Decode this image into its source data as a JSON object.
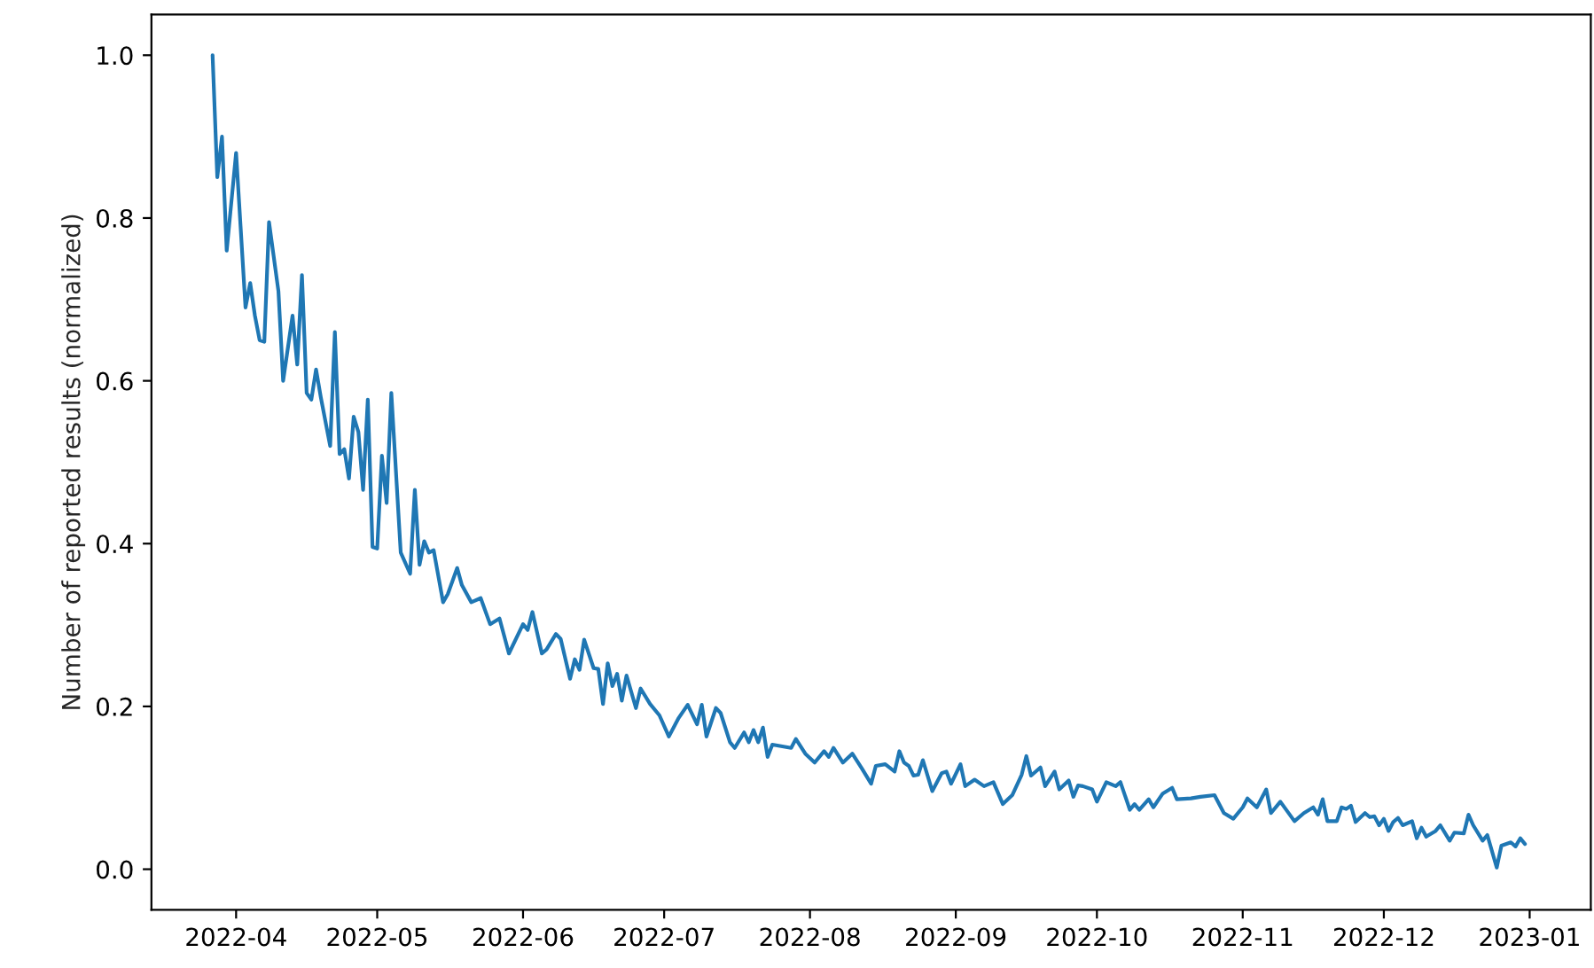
{
  "chart_data": {
    "type": "line",
    "ylabel": "Number of reported results (normalized)",
    "x": [
      "2022-03-27",
      "2022-03-28",
      "2022-03-29",
      "2022-03-30",
      "2022-04-01",
      "2022-04-03",
      "2022-04-04",
      "2022-04-05",
      "2022-04-06",
      "2022-04-07",
      "2022-04-08",
      "2022-04-10",
      "2022-04-11",
      "2022-04-13",
      "2022-04-14",
      "2022-04-15",
      "2022-04-16",
      "2022-04-17",
      "2022-04-18",
      "2022-04-19",
      "2022-04-21",
      "2022-04-22",
      "2022-04-23",
      "2022-04-24",
      "2022-04-25",
      "2022-04-26",
      "2022-04-27",
      "2022-04-28",
      "2022-04-29",
      "2022-04-30",
      "2022-05-01",
      "2022-05-02",
      "2022-05-03",
      "2022-05-04",
      "2022-05-06",
      "2022-05-08",
      "2022-05-09",
      "2022-05-10",
      "2022-05-11",
      "2022-05-12",
      "2022-05-13",
      "2022-05-15",
      "2022-05-16",
      "2022-05-18",
      "2022-05-19",
      "2022-05-21",
      "2022-05-23",
      "2022-05-25",
      "2022-05-27",
      "2022-05-29",
      "2022-06-01",
      "2022-06-02",
      "2022-06-03",
      "2022-06-05",
      "2022-06-06",
      "2022-06-08",
      "2022-06-09",
      "2022-06-11",
      "2022-06-12",
      "2022-06-13",
      "2022-06-14",
      "2022-06-16",
      "2022-06-17",
      "2022-06-18",
      "2022-06-19",
      "2022-06-20",
      "2022-06-21",
      "2022-06-22",
      "2022-06-23",
      "2022-06-25",
      "2022-06-26",
      "2022-06-28",
      "2022-06-30",
      "2022-07-02",
      "2022-07-04",
      "2022-07-06",
      "2022-07-08",
      "2022-07-09",
      "2022-07-10",
      "2022-07-12",
      "2022-07-13",
      "2022-07-15",
      "2022-07-16",
      "2022-07-18",
      "2022-07-19",
      "2022-07-20",
      "2022-07-21",
      "2022-07-22",
      "2022-07-23",
      "2022-07-24",
      "2022-07-28",
      "2022-07-29",
      "2022-07-31",
      "2022-08-02",
      "2022-08-04",
      "2022-08-05",
      "2022-08-06",
      "2022-08-08",
      "2022-08-10",
      "2022-08-12",
      "2022-08-14",
      "2022-08-15",
      "2022-08-17",
      "2022-08-19",
      "2022-08-20",
      "2022-08-21",
      "2022-08-22",
      "2022-08-23",
      "2022-08-24",
      "2022-08-25",
      "2022-08-27",
      "2022-08-29",
      "2022-08-30",
      "2022-08-31",
      "2022-09-02",
      "2022-09-03",
      "2022-09-05",
      "2022-09-07",
      "2022-09-09",
      "2022-09-11",
      "2022-09-13",
      "2022-09-15",
      "2022-09-16",
      "2022-09-17",
      "2022-09-19",
      "2022-09-20",
      "2022-09-22",
      "2022-09-23",
      "2022-09-25",
      "2022-09-26",
      "2022-09-27",
      "2022-09-28",
      "2022-09-30",
      "2022-10-01",
      "2022-10-03",
      "2022-10-05",
      "2022-10-06",
      "2022-10-08",
      "2022-10-09",
      "2022-10-10",
      "2022-10-12",
      "2022-10-13",
      "2022-10-15",
      "2022-10-17",
      "2022-10-18",
      "2022-10-21",
      "2022-10-23",
      "2022-10-26",
      "2022-10-28",
      "2022-10-30",
      "2022-11-01",
      "2022-11-02",
      "2022-11-04",
      "2022-11-06",
      "2022-11-07",
      "2022-11-09",
      "2022-11-12",
      "2022-11-14",
      "2022-11-16",
      "2022-11-17",
      "2022-11-18",
      "2022-11-19",
      "2022-11-21",
      "2022-11-22",
      "2022-11-23",
      "2022-11-24",
      "2022-11-25",
      "2022-11-27",
      "2022-11-28",
      "2022-11-29",
      "2022-11-30",
      "2022-12-01",
      "2022-12-02",
      "2022-12-03",
      "2022-12-04",
      "2022-12-05",
      "2022-12-07",
      "2022-12-08",
      "2022-12-09",
      "2022-12-10",
      "2022-12-12",
      "2022-12-13",
      "2022-12-15",
      "2022-12-16",
      "2022-12-18",
      "2022-12-19",
      "2022-12-20",
      "2022-12-22",
      "2022-12-23",
      "2022-12-25",
      "2022-12-26",
      "2022-12-28",
      "2022-12-29",
      "2022-12-30",
      "2022-12-31"
    ],
    "series": [
      {
        "color": "#1f77b4",
        "values": [
          1.0,
          0.85,
          0.9,
          0.76,
          0.88,
          0.69,
          0.72,
          0.68,
          0.65,
          0.648,
          0.795,
          0.71,
          0.6,
          0.68,
          0.62,
          0.73,
          0.585,
          0.577,
          0.614,
          0.58,
          0.52,
          0.66,
          0.51,
          0.516,
          0.48,
          0.556,
          0.537,
          0.466,
          0.577,
          0.396,
          0.394,
          0.508,
          0.45,
          0.585,
          0.389,
          0.363,
          0.466,
          0.374,
          0.403,
          0.389,
          0.392,
          0.328,
          0.338,
          0.37,
          0.349,
          0.328,
          0.333,
          0.301,
          0.308,
          0.265,
          0.301,
          0.294,
          0.316,
          0.265,
          0.27,
          0.289,
          0.283,
          0.234,
          0.258,
          0.245,
          0.282,
          0.247,
          0.246,
          0.203,
          0.253,
          0.225,
          0.24,
          0.207,
          0.238,
          0.198,
          0.222,
          0.203,
          0.189,
          0.163,
          0.185,
          0.202,
          0.178,
          0.202,
          0.163,
          0.198,
          0.192,
          0.156,
          0.149,
          0.168,
          0.156,
          0.171,
          0.156,
          0.174,
          0.138,
          0.153,
          0.149,
          0.16,
          0.142,
          0.131,
          0.145,
          0.138,
          0.149,
          0.131,
          0.142,
          0.124,
          0.105,
          0.127,
          0.129,
          0.12,
          0.145,
          0.131,
          0.127,
          0.115,
          0.116,
          0.134,
          0.096,
          0.118,
          0.12,
          0.105,
          0.129,
          0.102,
          0.11,
          0.102,
          0.107,
          0.08,
          0.091,
          0.116,
          0.139,
          0.115,
          0.125,
          0.102,
          0.12,
          0.098,
          0.109,
          0.089,
          0.103,
          0.102,
          0.098,
          0.083,
          0.107,
          0.102,
          0.107,
          0.073,
          0.08,
          0.073,
          0.086,
          0.076,
          0.093,
          0.1,
          0.086,
          0.087,
          0.089,
          0.091,
          0.069,
          0.062,
          0.076,
          0.087,
          0.076,
          0.098,
          0.069,
          0.083,
          0.059,
          0.069,
          0.076,
          0.067,
          0.086,
          0.059,
          0.059,
          0.076,
          0.074,
          0.078,
          0.058,
          0.069,
          0.064,
          0.065,
          0.054,
          0.062,
          0.047,
          0.058,
          0.063,
          0.054,
          0.059,
          0.038,
          0.051,
          0.04,
          0.047,
          0.054,
          0.035,
          0.045,
          0.044,
          0.067,
          0.054,
          0.035,
          0.042,
          0.002,
          0.029,
          0.033,
          0.028,
          0.038,
          0.031
        ]
      }
    ],
    "xlim": [
      "2022-03-14",
      "2023-01-14"
    ],
    "xticks": [
      "2022-04",
      "2022-05",
      "2022-06",
      "2022-07",
      "2022-08",
      "2022-09",
      "2022-10",
      "2022-11",
      "2022-12",
      "2023-01"
    ],
    "ylim": [
      -0.05,
      1.05
    ],
    "yticks": [
      {
        "value": 0,
        "label": "0.0"
      },
      {
        "value": 0.2,
        "label": "0.2"
      },
      {
        "value": 0.4,
        "label": "0.4"
      },
      {
        "value": 0.6,
        "label": "0.6"
      },
      {
        "value": 0.8,
        "label": "0.8"
      },
      {
        "value": 1,
        "label": "1.0"
      }
    ],
    "grid": false,
    "legend": false
  }
}
